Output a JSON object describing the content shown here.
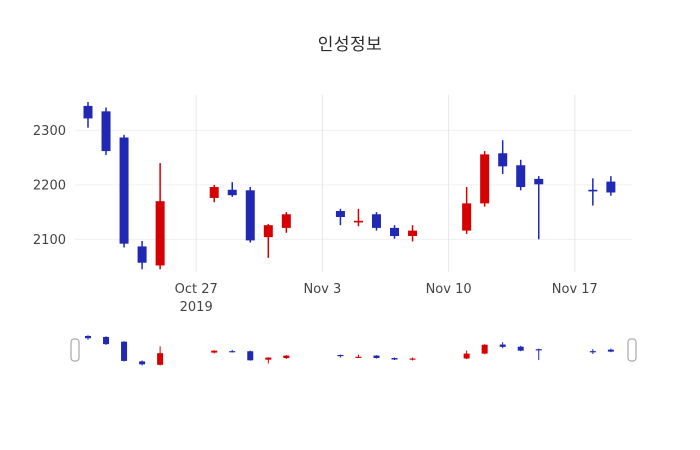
{
  "chart_data": {
    "type": "candlestick",
    "title": "인성정보",
    "up_color": "#d60000",
    "down_color": "#2028b4",
    "grid_color": "#e8e8e8",
    "hgrid_color": "#f0f0f0",
    "axis_text_color": "#444444",
    "ylim": [
      2040,
      2365
    ],
    "yticks": [
      2100,
      2200,
      2300
    ],
    "xticks": [
      {
        "date": "2019-10-27",
        "label": "Oct 27",
        "sublabel": "2019"
      },
      {
        "date": "2019-11-03",
        "label": "Nov 3"
      },
      {
        "date": "2019-11-10",
        "label": "Nov 10"
      },
      {
        "date": "2019-11-17",
        "label": "Nov 17"
      }
    ],
    "legend": "none",
    "grid": "on",
    "rangeslider": {
      "visible": true
    },
    "ohlc": [
      {
        "date": "2019-10-21",
        "open": 2345,
        "high": 2352,
        "low": 2305,
        "close": 2322
      },
      {
        "date": "2019-10-22",
        "open": 2335,
        "high": 2342,
        "low": 2255,
        "close": 2262
      },
      {
        "date": "2019-10-23",
        "open": 2287,
        "high": 2292,
        "low": 2085,
        "close": 2092
      },
      {
        "date": "2019-10-24",
        "open": 2087,
        "high": 2097,
        "low": 2045,
        "close": 2057
      },
      {
        "date": "2019-10-25",
        "open": 2052,
        "high": 2240,
        "low": 2045,
        "close": 2170
      },
      {
        "date": "2019-10-28",
        "open": 2176,
        "high": 2200,
        "low": 2168,
        "close": 2196
      },
      {
        "date": "2019-10-29",
        "open": 2191,
        "high": 2205,
        "low": 2178,
        "close": 2181
      },
      {
        "date": "2019-10-30",
        "open": 2190,
        "high": 2196,
        "low": 2094,
        "close": 2098
      },
      {
        "date": "2019-10-31",
        "open": 2104,
        "high": 2128,
        "low": 2066,
        "close": 2126
      },
      {
        "date": "2019-11-01",
        "open": 2121,
        "high": 2150,
        "low": 2112,
        "close": 2146
      },
      {
        "date": "2019-11-04",
        "open": 2152,
        "high": 2156,
        "low": 2126,
        "close": 2141
      },
      {
        "date": "2019-11-05",
        "open": 2131,
        "high": 2156,
        "low": 2124,
        "close": 2134
      },
      {
        "date": "2019-11-06",
        "open": 2146,
        "high": 2150,
        "low": 2116,
        "close": 2121
      },
      {
        "date": "2019-11-07",
        "open": 2121,
        "high": 2126,
        "low": 2101,
        "close": 2106
      },
      {
        "date": "2019-11-08",
        "open": 2106,
        "high": 2126,
        "low": 2096,
        "close": 2116
      },
      {
        "date": "2019-11-11",
        "open": 2116,
        "high": 2196,
        "low": 2110,
        "close": 2166
      },
      {
        "date": "2019-11-12",
        "open": 2166,
        "high": 2262,
        "low": 2160,
        "close": 2256
      },
      {
        "date": "2019-11-13",
        "open": 2258,
        "high": 2282,
        "low": 2220,
        "close": 2234
      },
      {
        "date": "2019-11-14",
        "open": 2236,
        "high": 2246,
        "low": 2190,
        "close": 2196
      },
      {
        "date": "2019-11-15",
        "open": 2211,
        "high": 2216,
        "low": 2100,
        "close": 2201
      },
      {
        "date": "2019-11-18",
        "open": 2191,
        "high": 2212,
        "low": 2162,
        "close": 2188
      },
      {
        "date": "2019-11-19",
        "open": 2206,
        "high": 2216,
        "low": 2180,
        "close": 2186
      }
    ]
  }
}
